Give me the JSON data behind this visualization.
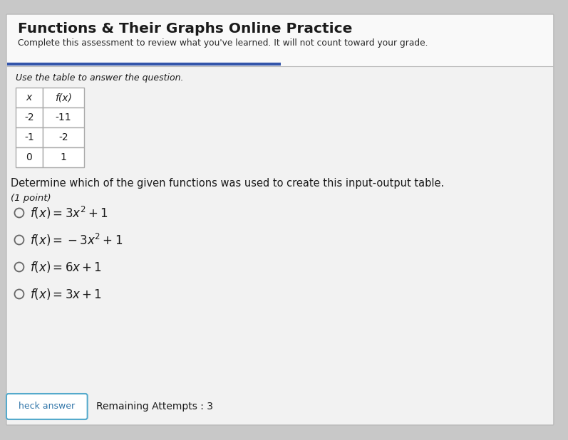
{
  "title": "Functions & Their Graphs Online Practice",
  "subtitle": "Complete this assessment to review what you've learned. It will not count toward your grade.",
  "instruction": "Use the table to answer the question.",
  "table_headers": [
    "x",
    "f(x)"
  ],
  "table_data": [
    [
      "-2",
      "-11"
    ],
    [
      "-1",
      "-2"
    ],
    [
      "0",
      "1"
    ]
  ],
  "question": "Determine which of the given functions was used to create this input-output table.",
  "point_label": "(1 point)",
  "options_latex": [
    "$f(x) = 3x^2 + 1$",
    "$f(x) = -3x^2 + 1$",
    "$f(x) = 6x + 1$",
    "$f(x) = 3x + 1$"
  ],
  "button_label": "heck answer",
  "remaining": "Remaining Attempts : 3",
  "outer_bg": "#c8c8c8",
  "card_bg": "#f2f2f2",
  "header_bg": "#f9f9f9",
  "border_color": "#bbbbbb",
  "title_color": "#1a1a1a",
  "subtitle_color": "#2a2a2a",
  "text_color": "#1a1a1a",
  "accent_line_color": "#3355aa",
  "table_border": "#aaaaaa",
  "table_header_color": "#222222",
  "button_border_color": "#55aacc",
  "button_text_color": "#3377aa",
  "option_circle_color": "#666666"
}
